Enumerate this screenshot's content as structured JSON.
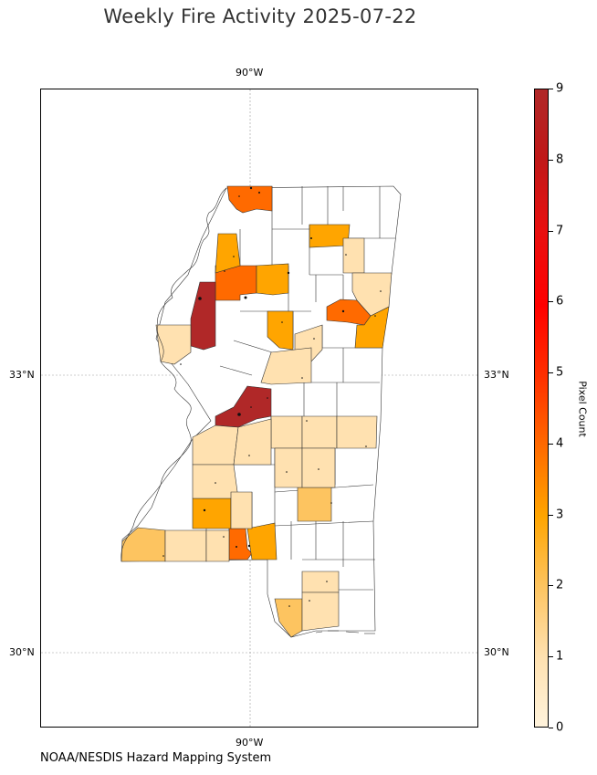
{
  "title": "Weekly Fire Activity 2025-07-22",
  "credit": "NOAA/NESDIS Hazard Mapping System",
  "gridlines": {
    "lon_top": "90°W",
    "lon_bottom": "90°W",
    "lat_33_left": "33°N",
    "lat_33_right": "33°N",
    "lat_30_left": "30°N",
    "lat_30_right": "30°N"
  },
  "colorbar": {
    "label": "Pixel Count",
    "ticks": [
      "0",
      "1",
      "2",
      "3",
      "4",
      "5",
      "6",
      "7",
      "8",
      "9"
    ],
    "range": [
      0,
      9
    ],
    "colors": [
      "#fff3dc",
      "#ffe1b0",
      "#fdc460",
      "#ffa500",
      "#ff6a00",
      "#ff3000",
      "#ff0000",
      "#e81010",
      "#b02828"
    ]
  },
  "colors": {
    "ocean": "#ffffff",
    "county_border": "#333333",
    "hotspot": "#111111"
  }
}
